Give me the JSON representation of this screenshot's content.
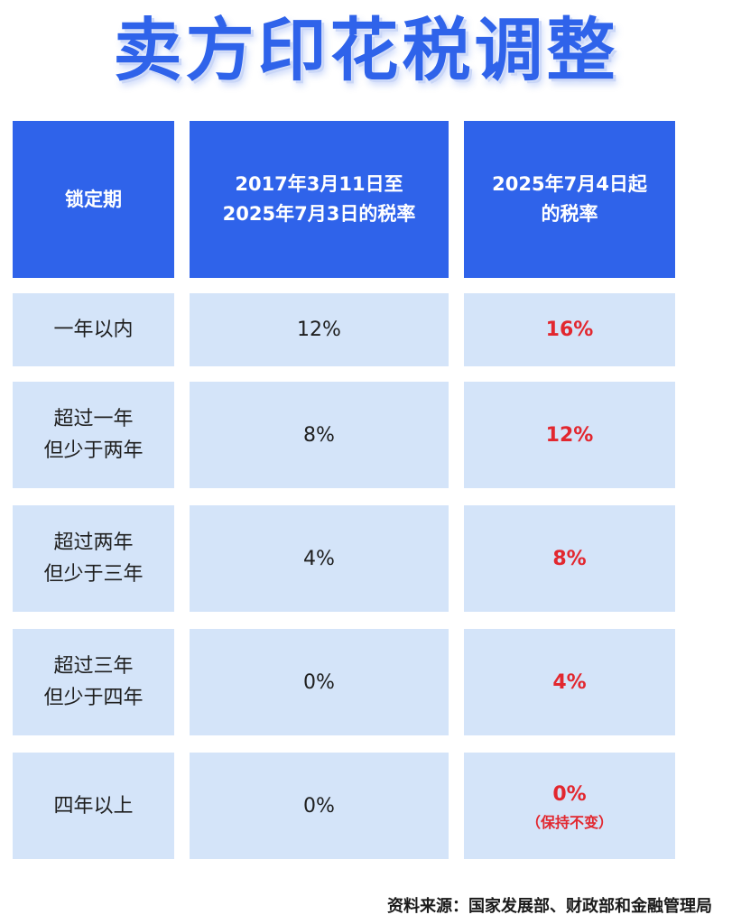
{
  "title": "卖方印花税调整",
  "table": {
    "headers": [
      "锁定期",
      [
        "2017年3月11日至",
        "2025年7月3日的税率"
      ],
      [
        "2025年7月4日起",
        "的税率"
      ]
    ],
    "rows": [
      {
        "period": [
          "一年以内"
        ],
        "old_rate": "12%",
        "new_rate": "16%",
        "note": ""
      },
      {
        "period": [
          "超过一年",
          "但少于两年"
        ],
        "old_rate": "8%",
        "new_rate": "12%",
        "note": ""
      },
      {
        "period": [
          "超过两年",
          "但少于三年"
        ],
        "old_rate": "4%",
        "new_rate": "8%",
        "note": ""
      },
      {
        "period": [
          "超过三年",
          "但少于四年"
        ],
        "old_rate": "0%",
        "new_rate": "4%",
        "note": ""
      },
      {
        "period": [
          "四年以上"
        ],
        "old_rate": "0%",
        "new_rate": "0%",
        "note": "（保持不变）"
      }
    ]
  },
  "source": "资料来源：国家发展部、财政部和金融管理局",
  "colors": {
    "title": "#2f63ea",
    "header_bg": "#2f63ea",
    "cell_bg": "#d4e4f9",
    "highlight": "#e2272f"
  }
}
